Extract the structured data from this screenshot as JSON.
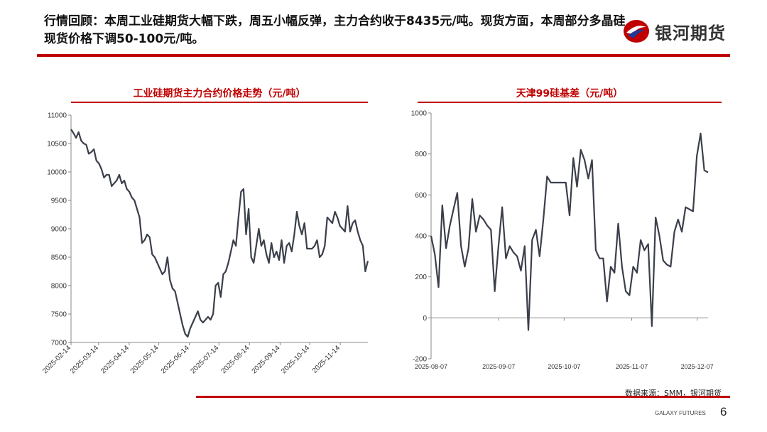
{
  "headline": "行情回顾：本周工业硅期货大幅下跌，周五小幅反弹，主力合约收于8435元/吨。现货方面，本周部分多晶硅现货价格下调50-100元/吨。",
  "logo": {
    "name": "银河期货",
    "icon": "galaxy-logo-icon",
    "colors": {
      "red": "#c00000",
      "blue": "#1f3a93"
    }
  },
  "source": "数据来源：SMM，银河期货",
  "footer": {
    "company": "GALAXY FUTURES",
    "page": "6"
  },
  "colors": {
    "accent": "#c00000",
    "series": "#3a3f4a"
  },
  "chart_data": [
    {
      "type": "line",
      "title": "工业硅期货主力合约价格走势（元/吨）",
      "xlabel": "",
      "ylabel": "",
      "ylim": [
        7000,
        11000
      ],
      "yticks": [
        7000,
        7500,
        8000,
        8500,
        9000,
        9500,
        10000,
        10500,
        11000
      ],
      "xticks": [
        "2025-02-14",
        "2025-03-14",
        "2025-04-14",
        "2025-05-14",
        "2025-06-14",
        "2025-07-14",
        "2025-08-14",
        "2025-09-14",
        "2025-10-14",
        "2025-11-14"
      ],
      "x_start": "2025-02-14",
      "x_end": "2025-12-12",
      "series": [
        {
          "values": [
            10750,
            10680,
            10600,
            10700,
            10550,
            10500,
            10480,
            10320,
            10350,
            10400,
            10200,
            10150,
            10050,
            9900,
            9950,
            9950,
            9750,
            9800,
            9850,
            9950,
            9800,
            9850,
            9700,
            9650,
            9550,
            9500,
            9350,
            9200,
            8750,
            8800,
            8900,
            8850,
            8550,
            8500,
            8400,
            8300,
            8200,
            8250,
            8500,
            8100,
            7950,
            7900,
            7700,
            7500,
            7300,
            7150,
            7100,
            7250,
            7350,
            7450,
            7550,
            7400,
            7350,
            7400,
            7450,
            7400,
            7500,
            8000,
            8050,
            7800,
            8200,
            8250,
            8400,
            8600,
            8800,
            8700,
            9200,
            9650,
            9700,
            8900,
            9350,
            8500,
            8400,
            8700,
            9000,
            8700,
            8800,
            8550,
            8400,
            8750,
            8500,
            8600,
            8450,
            8800,
            8400,
            8700,
            8750,
            8600,
            8900,
            9300,
            9050,
            8900,
            9100,
            8650,
            8650,
            8650,
            8700,
            8800,
            8500,
            8550,
            8700,
            9200,
            9150,
            9100,
            9300,
            9200,
            9050,
            9000,
            8950,
            9400,
            8950,
            9100,
            9150,
            8950,
            8800,
            8700,
            8250,
            8435
          ]
        }
      ]
    },
    {
      "type": "line",
      "title": "天津99硅基差（元/吨）",
      "xlabel": "",
      "ylabel": "",
      "ylim": [
        -200,
        1000
      ],
      "yticks": [
        -200,
        0,
        200,
        400,
        600,
        800,
        1000
      ],
      "xticks": [
        "2025-08-07",
        "2025-09-07",
        "2025-10-07",
        "2025-11-07",
        "2025-12-07"
      ],
      "x_start": "2025-08-07",
      "x_end": "2025-12-12",
      "series": [
        {
          "values": [
            400,
            310,
            150,
            550,
            340,
            450,
            530,
            610,
            350,
            250,
            340,
            580,
            420,
            500,
            480,
            450,
            430,
            130,
            350,
            540,
            290,
            350,
            320,
            300,
            230,
            350,
            -60,
            380,
            430,
            300,
            480,
            690,
            660,
            660,
            660,
            660,
            660,
            500,
            780,
            640,
            820,
            770,
            680,
            770,
            330,
            290,
            290,
            80,
            250,
            220,
            460,
            250,
            130,
            110,
            250,
            220,
            380,
            330,
            360,
            -40,
            490,
            400,
            280,
            260,
            250,
            420,
            480,
            420,
            540,
            530,
            520,
            790,
            900,
            720,
            710
          ]
        }
      ]
    }
  ]
}
